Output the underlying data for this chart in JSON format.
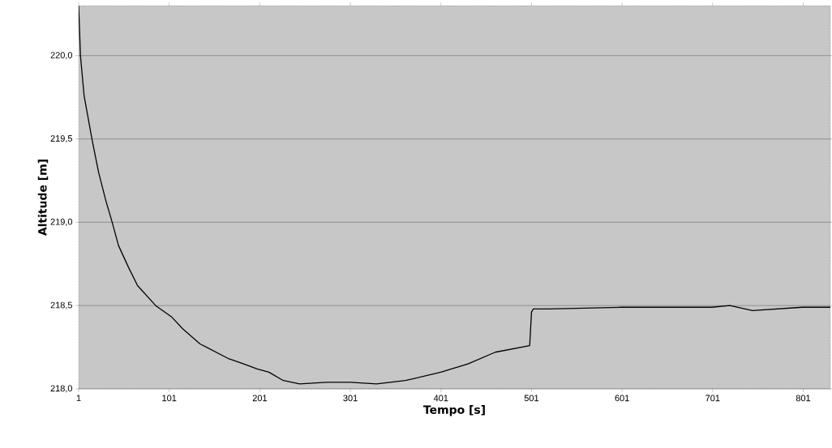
{
  "chart_data": {
    "type": "line",
    "xlabel": "Tempo [s]",
    "ylabel": "Altitude [m]",
    "x": [
      1,
      3,
      7,
      16,
      23,
      31,
      38,
      45,
      56,
      66,
      86,
      104,
      116,
      135,
      167,
      183,
      198,
      211,
      227,
      245,
      275,
      301,
      330,
      362,
      401,
      431,
      461,
      499,
      501,
      503,
      520,
      600,
      700,
      720,
      745,
      800,
      831
    ],
    "values": [
      220.3,
      220.0,
      219.76,
      219.49,
      219.3,
      219.13,
      219.0,
      218.86,
      218.73,
      218.62,
      218.5,
      218.43,
      218.36,
      218.27,
      218.18,
      218.15,
      218.12,
      218.1,
      218.05,
      218.03,
      218.04,
      218.04,
      218.03,
      218.05,
      218.1,
      218.15,
      218.22,
      218.26,
      218.46,
      218.48,
      218.48,
      218.49,
      218.49,
      218.5,
      218.47,
      218.49,
      218.49
    ],
    "color": "#000000",
    "marker": "none",
    "line_style": "solid",
    "grid": "y",
    "xlim": [
      1,
      831
    ],
    "ylim": [
      218.0,
      220.3
    ],
    "xticks": [
      1,
      101,
      201,
      301,
      401,
      501,
      601,
      701,
      801
    ],
    "yticks": [
      {
        "value": 218.0,
        "label": "218,0"
      },
      {
        "value": 218.5,
        "label": "218,5"
      },
      {
        "value": 219.0,
        "label": "219,0"
      },
      {
        "value": 219.5,
        "label": "219,5"
      },
      {
        "value": 220.0,
        "label": "220,0"
      }
    ]
  }
}
